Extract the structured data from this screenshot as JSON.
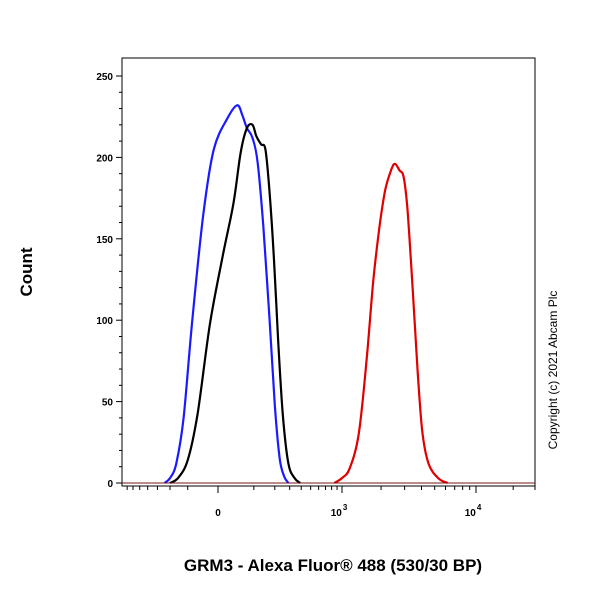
{
  "chart_data": {
    "type": "line",
    "title": "",
    "xlabel": "GRM3 - Alexa Fluor® 488 (530/30 BP)",
    "ylabel": "Count",
    "copyright": "Copyright (c) 2021 Abcam Plc",
    "x_scale": "biexponential",
    "ylim": [
      0,
      250
    ],
    "y_ticks": [
      0,
      50,
      100,
      150,
      200,
      250
    ],
    "x_ticks": [
      {
        "value": 0,
        "label": "0",
        "exp": ""
      },
      {
        "value": 1000,
        "label": "10",
        "exp": "3"
      },
      {
        "value": 10000,
        "label": "10",
        "exp": "4"
      }
    ],
    "grid": false,
    "legend": "none",
    "series": [
      {
        "color": "#1a1aff",
        "points": [
          [
            -240,
            0
          ],
          [
            -200,
            3
          ],
          [
            -160,
            12
          ],
          [
            -120,
            40
          ],
          [
            -80,
            100
          ],
          [
            -40,
            165
          ],
          [
            -10,
            205
          ],
          [
            20,
            224
          ],
          [
            45,
            232
          ],
          [
            60,
            226
          ],
          [
            75,
            218
          ],
          [
            95,
            212
          ],
          [
            115,
            197
          ],
          [
            140,
            158
          ],
          [
            170,
            102
          ],
          [
            200,
            48
          ],
          [
            230,
            15
          ],
          [
            260,
            4
          ],
          [
            290,
            0
          ]
        ]
      },
      {
        "color": "#000000",
        "points": [
          [
            -200,
            0
          ],
          [
            -150,
            3
          ],
          [
            -100,
            14
          ],
          [
            -60,
            42
          ],
          [
            -20,
            98
          ],
          [
            10,
            140
          ],
          [
            35,
            172
          ],
          [
            55,
            203
          ],
          [
            75,
            218
          ],
          [
            95,
            220
          ],
          [
            110,
            213
          ],
          [
            130,
            208
          ],
          [
            150,
            205
          ],
          [
            170,
            180
          ],
          [
            195,
            138
          ],
          [
            220,
            88
          ],
          [
            250,
            42
          ],
          [
            290,
            12
          ],
          [
            340,
            3
          ],
          [
            390,
            0
          ]
        ]
      },
      {
        "color": "#e00000",
        "points": [
          [
            850,
            0
          ],
          [
            1000,
            3
          ],
          [
            1150,
            9
          ],
          [
            1350,
            30
          ],
          [
            1550,
            75
          ],
          [
            1750,
            125
          ],
          [
            1950,
            158
          ],
          [
            2150,
            180
          ],
          [
            2400,
            193
          ],
          [
            2550,
            196
          ],
          [
            2750,
            192
          ],
          [
            2950,
            188
          ],
          [
            3150,
            168
          ],
          [
            3450,
            118
          ],
          [
            3750,
            68
          ],
          [
            4050,
            32
          ],
          [
            4500,
            12
          ],
          [
            5300,
            3
          ],
          [
            6200,
            0
          ]
        ]
      }
    ]
  }
}
